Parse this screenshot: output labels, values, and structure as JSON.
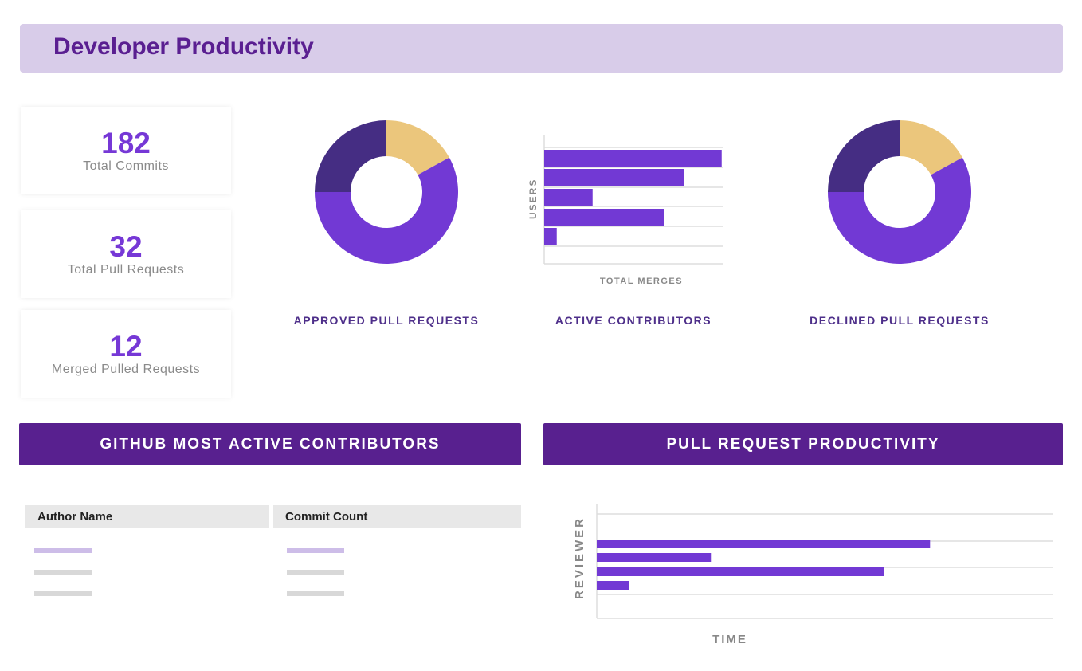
{
  "header": {
    "title": "Developer Productivity"
  },
  "stats": [
    {
      "value": "182",
      "label": "Total Commits"
    },
    {
      "value": "32",
      "label": "Total Pull Requests"
    },
    {
      "value": "12",
      "label": "Merged Pulled Requests"
    }
  ],
  "colors": {
    "yellow": "#ebc67c",
    "purple": "#7239d4",
    "dark_purple": "#452d83",
    "header_bg": "#d8cce9",
    "section_bg": "#58208f"
  },
  "sections": {
    "contributors": "GITHUB MOST ACTIVE CONTRIBUTORS",
    "productivity": "PULL REQUEST PRODUCTIVITY"
  },
  "table": {
    "columns": [
      "Author Name",
      "Commit Count"
    ]
  },
  "chart_data": [
    {
      "type": "pie",
      "title": "APPROVED PULL REQUESTS",
      "values": [
        17,
        58,
        25
      ],
      "colors": [
        "#ebc67c",
        "#7239d4",
        "#452d83"
      ]
    },
    {
      "type": "bar",
      "orientation": "horizontal",
      "title": "ACTIVE CONTRIBUTORS",
      "xlabel": "TOTAL MERGES",
      "ylabel": "USERS",
      "values": [
        0.99,
        0.78,
        0.27,
        0.67,
        0.07
      ],
      "grid": true
    },
    {
      "type": "pie",
      "title": "DECLINED PULL REQUESTS",
      "values": [
        17,
        58,
        25
      ],
      "colors": [
        "#ebc67c",
        "#7239d4",
        "#452d83"
      ]
    },
    {
      "type": "bar",
      "orientation": "horizontal",
      "title": "PULL REQUEST PRODUCTIVITY",
      "xlabel": "TIME",
      "ylabel": "REVIEWER",
      "values": [
        0.73,
        0.25,
        0.63,
        0.07
      ],
      "grid": true
    }
  ]
}
